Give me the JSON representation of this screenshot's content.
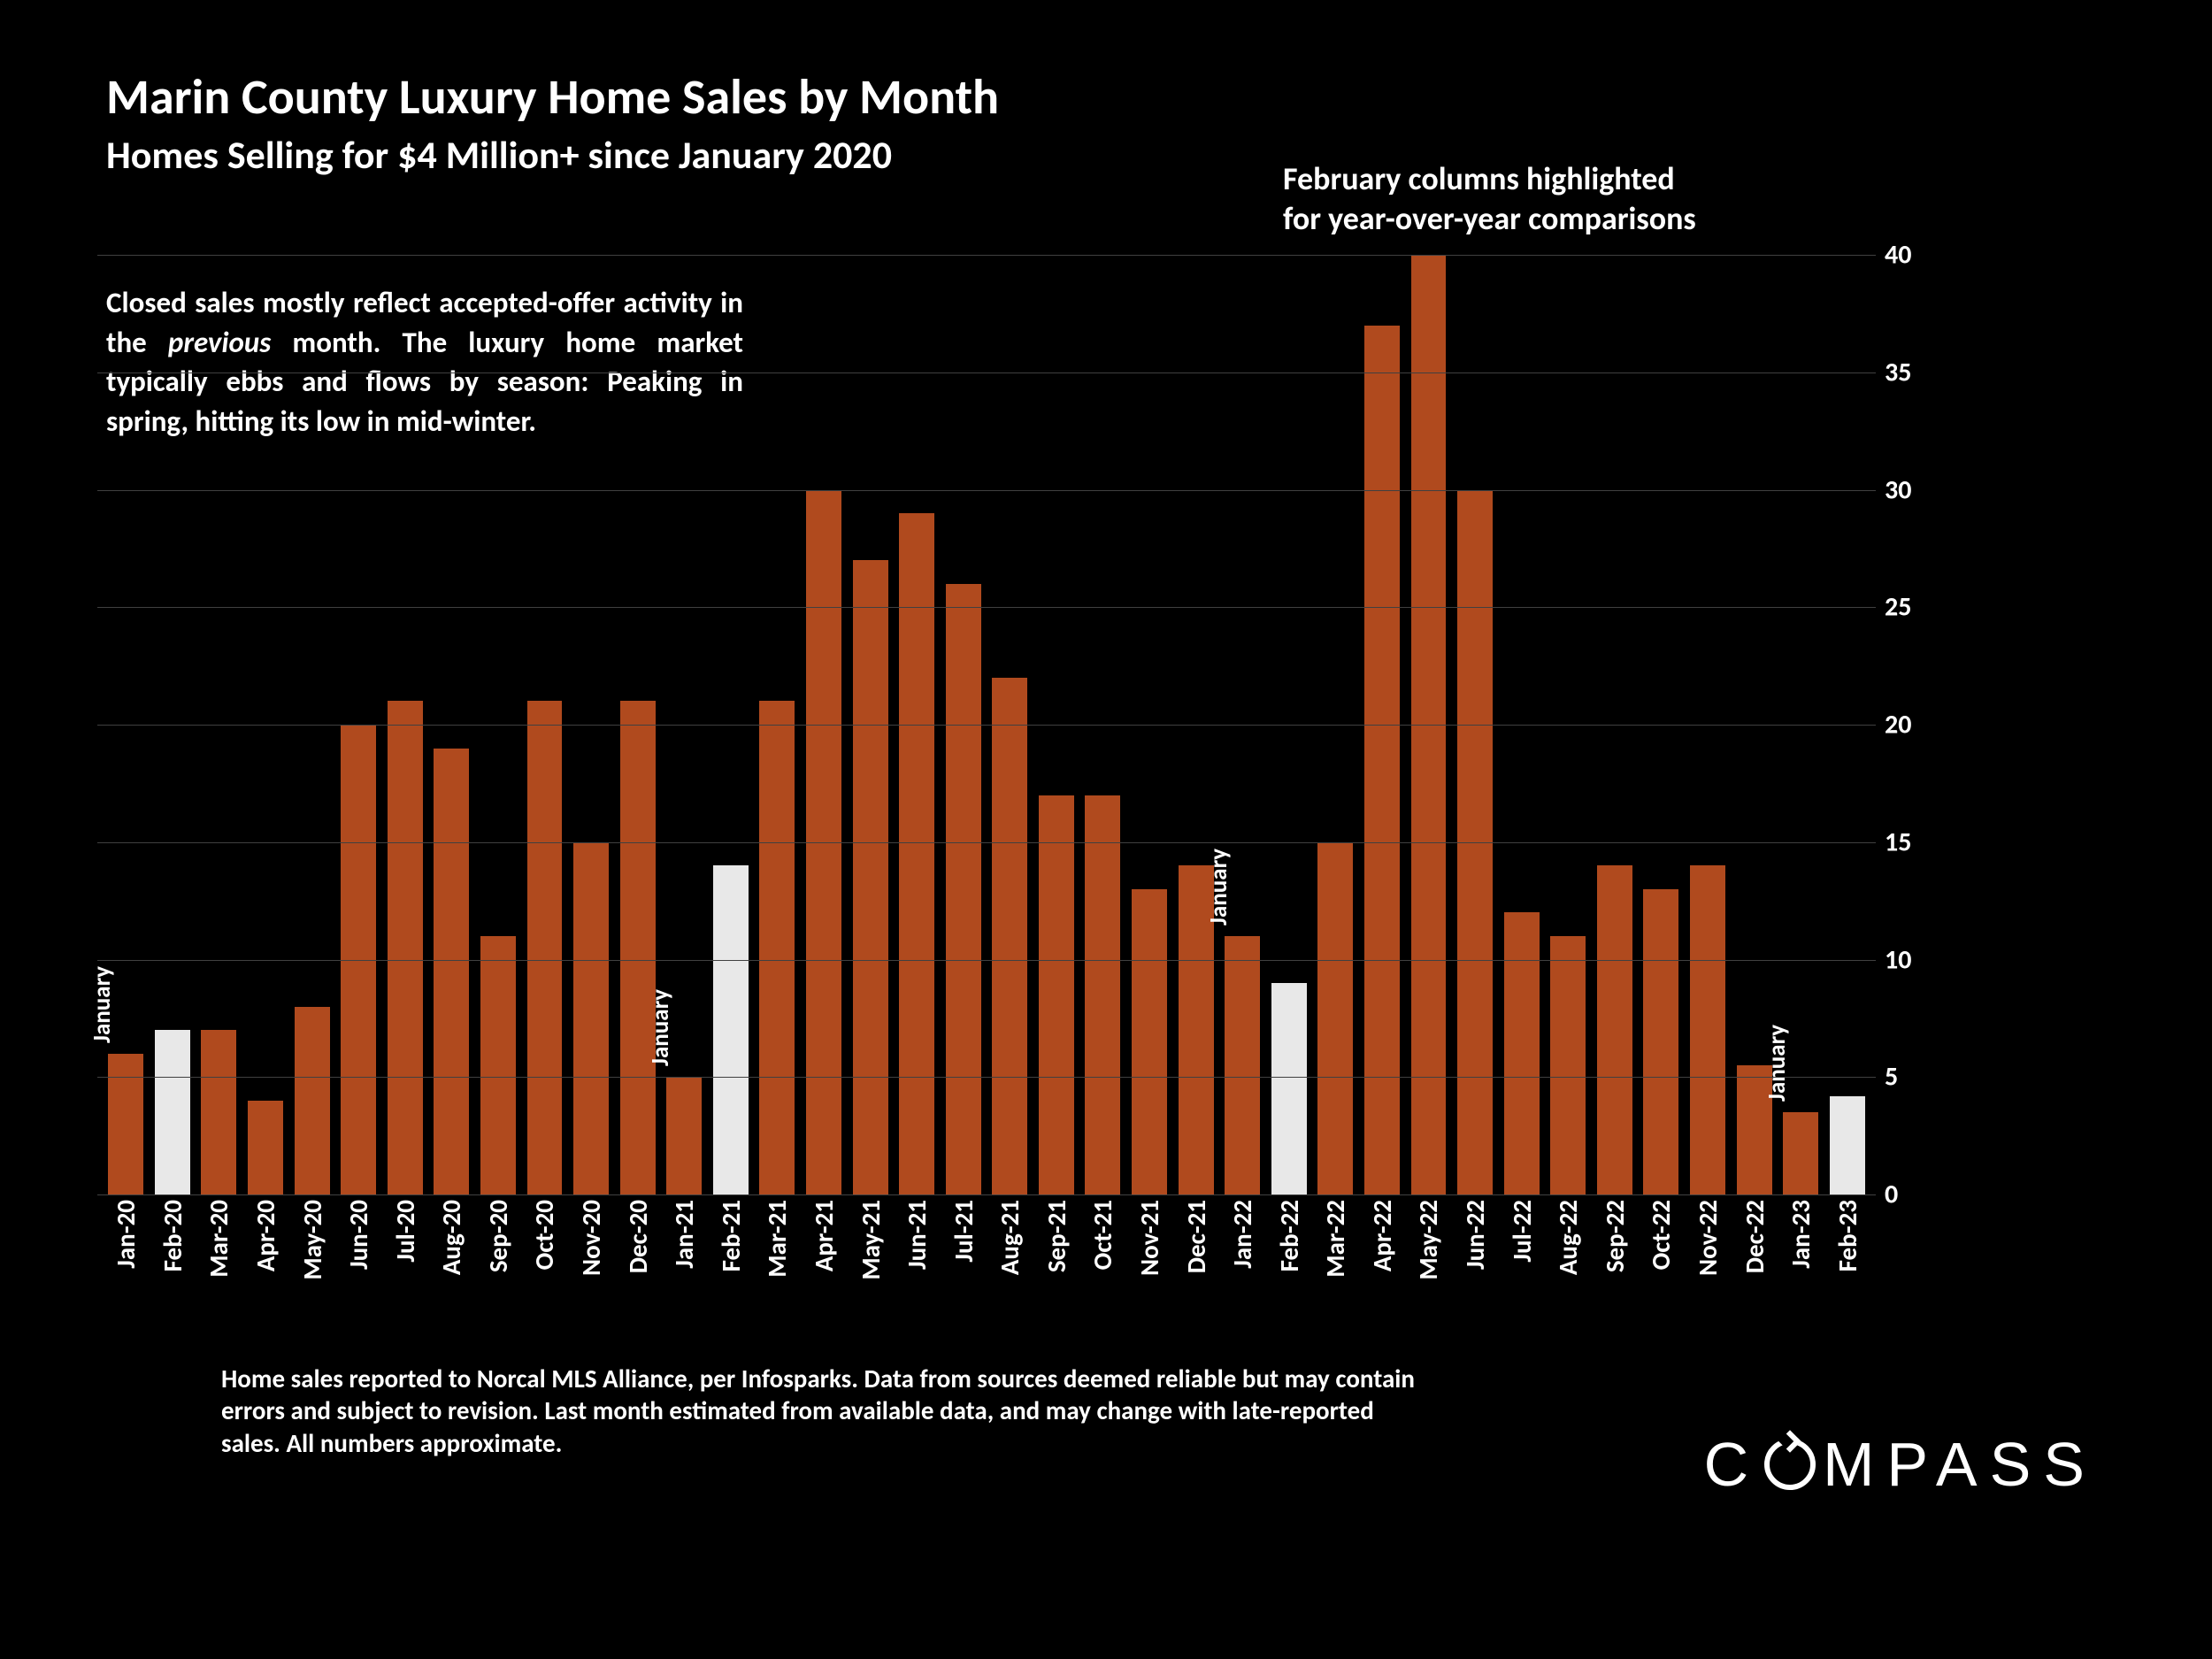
{
  "title": "Marin County Luxury Home Sales by Month",
  "subtitle": "Homes Selling for $4 Million+ since January 2020",
  "highlight_note_line1": "February columns highlighted",
  "highlight_note_line2": "for year-over-year comparisons",
  "description_parts": {
    "pre": "Closed sales mostly reflect accepted-offer activity in the ",
    "italic": "previous",
    "post": " month. The luxury home market typically ebbs and flows by season: Peaking in spring, hitting its low in mid-winter."
  },
  "footnote": "Home sales reported to Norcal MLS Alliance, per Infosparks. Data from sources deemed reliable but may contain errors and subject to revision.  Last month estimated from available data, and may change with late-reported sales. All numbers approximate.",
  "brand": "COMPASS",
  "chart": {
    "type": "bar",
    "ylim": [
      0,
      40
    ],
    "ytick_step": 5,
    "bar_color": "#b04a1e",
    "highlight_color": "#e8e8e8",
    "background": "#000000",
    "grid_color": "#404040",
    "label_color": "#ffffff",
    "label_fontsize": 29,
    "ytick_fontsize": 30,
    "yticks": [
      0,
      5,
      10,
      15,
      20,
      25,
      30,
      35,
      40
    ],
    "categories": [
      "Jan-20",
      "Feb-20",
      "Mar-20",
      "Apr-20",
      "May-20",
      "Jun-20",
      "Jul-20",
      "Aug-20",
      "Sep-20",
      "Oct-20",
      "Nov-20",
      "Dec-20",
      "Jan-21",
      "Feb-21",
      "Mar-21",
      "Apr-21",
      "May-21",
      "Jun-21",
      "Jul-21",
      "Aug-21",
      "Sep-21",
      "Oct-21",
      "Nov-21",
      "Dec-21",
      "Jan-22",
      "Feb-22",
      "Mar-22",
      "Apr-22",
      "May-22",
      "Jun-22",
      "Jul-22",
      "Aug-22",
      "Sep-22",
      "Oct-22",
      "Nov-22",
      "Dec-22",
      "Jan-23",
      "Feb-23"
    ],
    "values": [
      6,
      7,
      7,
      4,
      8,
      20,
      21,
      19,
      11,
      21,
      15,
      21,
      5,
      14,
      21,
      30,
      27,
      29,
      26,
      22,
      17,
      17,
      13,
      14,
      11,
      9,
      15,
      37,
      40,
      30,
      12,
      11,
      14,
      13,
      14,
      5.5,
      3.5,
      4.2
    ],
    "highlighted_indices": [
      1,
      13,
      25,
      37
    ],
    "january_annotations": [
      {
        "index": 0,
        "label": "January"
      },
      {
        "index": 12,
        "label": "January"
      },
      {
        "index": 24,
        "label": "January"
      },
      {
        "index": 36,
        "label": "January"
      }
    ]
  }
}
